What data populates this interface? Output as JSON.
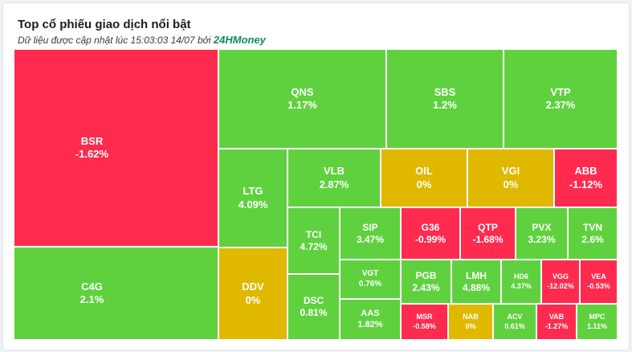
{
  "header": {
    "title": "Top cổ phiếu giao dịch nổi bật",
    "subtitle_prefix": "Dữ liệu được cập nhật lúc 15:03:03 14/07 bởi",
    "brand": "24HMoney"
  },
  "colors": {
    "up": "#5fd13f",
    "down": "#ff2b4f",
    "flat": "#e0b800",
    "border": "#ffffff"
  },
  "chart_data": {
    "type": "treemap",
    "items": [
      {
        "symbol": "BSR",
        "change": "-1.62%",
        "status": "down"
      },
      {
        "symbol": "C4G",
        "change": "2.1%",
        "status": "up"
      },
      {
        "symbol": "QNS",
        "change": "1.17%",
        "status": "up"
      },
      {
        "symbol": "SBS",
        "change": "1.2%",
        "status": "up"
      },
      {
        "symbol": "VTP",
        "change": "2.37%",
        "status": "up"
      },
      {
        "symbol": "LTG",
        "change": "4.09%",
        "status": "up"
      },
      {
        "symbol": "VLB",
        "change": "2.87%",
        "status": "up"
      },
      {
        "symbol": "OIL",
        "change": "0%",
        "status": "flat"
      },
      {
        "symbol": "VGI",
        "change": "0%",
        "status": "flat"
      },
      {
        "symbol": "ABB",
        "change": "-1.12%",
        "status": "down"
      },
      {
        "symbol": "TCI",
        "change": "4.72%",
        "status": "up"
      },
      {
        "symbol": "SIP",
        "change": "3.47%",
        "status": "up"
      },
      {
        "symbol": "G36",
        "change": "-0.99%",
        "status": "down"
      },
      {
        "symbol": "QTP",
        "change": "-1.68%",
        "status": "down"
      },
      {
        "symbol": "PVX",
        "change": "3.23%",
        "status": "up"
      },
      {
        "symbol": "TVN",
        "change": "2.6%",
        "status": "up"
      },
      {
        "symbol": "DDV",
        "change": "0%",
        "status": "flat"
      },
      {
        "symbol": "DSC",
        "change": "0.81%",
        "status": "up"
      },
      {
        "symbol": "VGT",
        "change": "0.76%",
        "status": "up"
      },
      {
        "symbol": "AAS",
        "change": "1.82%",
        "status": "up"
      },
      {
        "symbol": "PGB",
        "change": "2.43%",
        "status": "up"
      },
      {
        "symbol": "LMH",
        "change": "4.88%",
        "status": "up"
      },
      {
        "symbol": "HD6",
        "change": "4.37%",
        "status": "up"
      },
      {
        "symbol": "VGG",
        "change": "-12.02%",
        "status": "down"
      },
      {
        "symbol": "VEA",
        "change": "-0.53%",
        "status": "down"
      },
      {
        "symbol": "MSR",
        "change": "-0.58%",
        "status": "down"
      },
      {
        "symbol": "NAB",
        "change": "0%",
        "status": "flat"
      },
      {
        "symbol": "ACV",
        "change": "0.61%",
        "status": "up"
      },
      {
        "symbol": "VAB",
        "change": "-1.27%",
        "status": "down"
      },
      {
        "symbol": "MPC",
        "change": "1.11%",
        "status": "up"
      }
    ]
  }
}
